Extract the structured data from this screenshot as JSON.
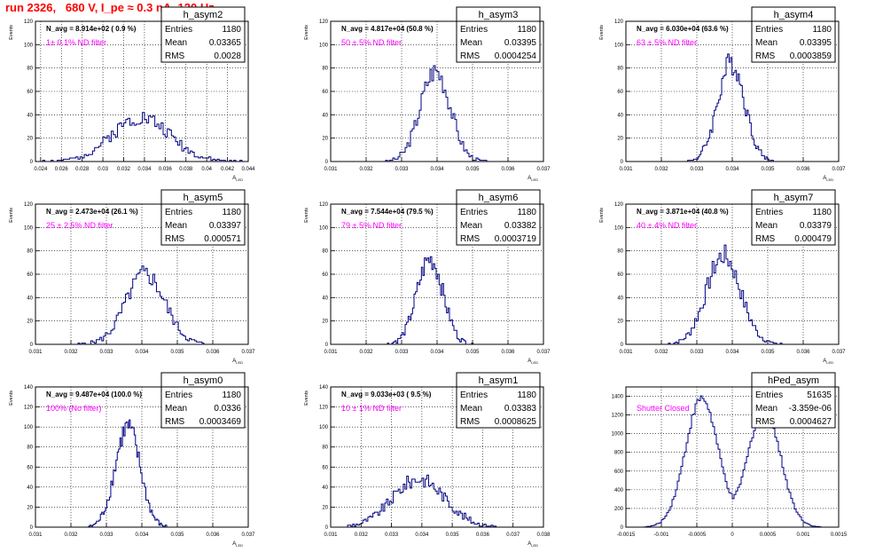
{
  "run_title": "run 2326,   680 V, I_pe ≈ 0.3 nA, 120 Hz",
  "colors": {
    "hist": "#000080",
    "annotation": "#ff00ff",
    "title": "#ff0000",
    "grid": "#000000"
  },
  "chart_data": [
    {
      "type": "bar",
      "name": "h_asym2",
      "ylabel": "Events",
      "xlabel": "A_{LED}",
      "xlim": [
        0.0235,
        0.044
      ],
      "ylim": [
        0,
        120
      ],
      "xticks": [
        0.024,
        0.026,
        0.028,
        0.03,
        0.032,
        0.034,
        0.036,
        0.038,
        0.04,
        0.042,
        0.044
      ],
      "xtick_labels": [
        "0.024",
        "0.026",
        "0.028",
        "0.03",
        "0.032",
        "0.034",
        "0.036",
        "0.038",
        "0.04",
        "0.042",
        "0.044"
      ],
      "yticks": [
        0,
        20,
        40,
        60,
        80,
        100,
        120
      ],
      "navg": "N_avg = 8.914e+02 ( 0.9 %)",
      "annotation": "1± 0.1% ND filter",
      "stats": {
        "title": "h_asym2",
        "rows": [
          [
            "Entries",
            "1180"
          ],
          [
            "Mean",
            "0.03365"
          ],
          [
            "RMS",
            "0.0028"
          ]
        ]
      },
      "hist": {
        "center": 0.03365,
        "width": 0.0028,
        "peak": 38,
        "lo": 0.0236,
        "hi": 0.0436,
        "nbins": 100,
        "seed": 2
      }
    },
    {
      "type": "bar",
      "name": "h_asym3",
      "ylabel": "Events",
      "xlabel": "A_{LED}",
      "xlim": [
        0.031,
        0.037
      ],
      "ylim": [
        0,
        120
      ],
      "xticks": [
        0.031,
        0.032,
        0.033,
        0.034,
        0.035,
        0.036,
        0.037
      ],
      "xtick_labels": [
        "0.031",
        "0.032",
        "0.033",
        "0.034",
        "0.035",
        "0.036",
        "0.037"
      ],
      "yticks": [
        0,
        20,
        40,
        60,
        80,
        100,
        120
      ],
      "navg": "N_avg = 4.817e+04 (50.8 %)",
      "annotation": "50 ± 5% ND filter",
      "stats": {
        "title": "h_asym3",
        "rows": [
          [
            "Entries",
            "1180"
          ],
          [
            "Mean",
            "0.03395"
          ],
          [
            "RMS",
            "0.0004254"
          ]
        ]
      },
      "hist": {
        "center": 0.03395,
        "width": 0.00042,
        "peak": 78,
        "lo": 0.0325,
        "hi": 0.0355,
        "nbins": 60,
        "seed": 3
      }
    },
    {
      "type": "bar",
      "name": "h_asym4",
      "ylabel": "Events",
      "xlabel": "A_{LED}",
      "xlim": [
        0.031,
        0.037
      ],
      "ylim": [
        0,
        120
      ],
      "xticks": [
        0.031,
        0.032,
        0.033,
        0.034,
        0.035,
        0.036,
        0.037
      ],
      "xtick_labels": [
        "0.031",
        "0.032",
        "0.033",
        "0.034",
        "0.035",
        "0.036",
        "0.037"
      ],
      "yticks": [
        0,
        20,
        40,
        60,
        80,
        100,
        120
      ],
      "navg": "N_avg = 6.030e+04 (63.6 %)",
      "annotation": "63 ± 5% ND filter",
      "stats": {
        "title": "h_asym4",
        "rows": [
          [
            "Entries",
            "1180"
          ],
          [
            "Mean",
            "0.03395"
          ],
          [
            "RMS",
            "0.0003859"
          ]
        ]
      },
      "hist": {
        "center": 0.03397,
        "width": 0.00038,
        "peak": 85,
        "lo": 0.0327,
        "hi": 0.0352,
        "nbins": 60,
        "seed": 4
      }
    },
    {
      "type": "bar",
      "name": "h_asym5",
      "ylabel": "Events",
      "xlabel": "A_{LED}",
      "xlim": [
        0.031,
        0.037
      ],
      "ylim": [
        0,
        120
      ],
      "xticks": [
        0.031,
        0.032,
        0.033,
        0.034,
        0.035,
        0.036,
        0.037
      ],
      "xtick_labels": [
        "0.031",
        "0.032",
        "0.033",
        "0.034",
        "0.035",
        "0.036",
        "0.037"
      ],
      "yticks": [
        0,
        20,
        40,
        60,
        80,
        100,
        120
      ],
      "navg": "N_avg = 2.473e+04 (26.1 %)",
      "annotation": "25 ± 2.5% ND filter",
      "stats": {
        "title": "h_asym5",
        "rows": [
          [
            "Entries",
            "1180"
          ],
          [
            "Mean",
            "0.03397"
          ],
          [
            "RMS",
            "0.000571"
          ]
        ]
      },
      "hist": {
        "center": 0.0341,
        "width": 0.00055,
        "peak": 60,
        "lo": 0.0322,
        "hi": 0.0358,
        "nbins": 70,
        "seed": 5
      }
    },
    {
      "type": "bar",
      "name": "h_asym6",
      "ylabel": "Events",
      "xlabel": "A_{LED}",
      "xlim": [
        0.031,
        0.037
      ],
      "ylim": [
        0,
        120
      ],
      "xticks": [
        0.031,
        0.032,
        0.033,
        0.034,
        0.035,
        0.036,
        0.037
      ],
      "xtick_labels": [
        "0.031",
        "0.032",
        "0.033",
        "0.034",
        "0.035",
        "0.036",
        "0.037"
      ],
      "yticks": [
        0,
        20,
        40,
        60,
        80,
        100,
        120
      ],
      "navg": "N_avg = 7.544e+04 (79.5 %)",
      "annotation": "79 ± 5% ND filter",
      "stats": {
        "title": "h_asym6",
        "rows": [
          [
            "Entries",
            "1180"
          ],
          [
            "Mean",
            "0.03382"
          ],
          [
            "RMS",
            "0.0003719"
          ]
        ]
      },
      "hist": {
        "center": 0.0338,
        "width": 0.00037,
        "peak": 73,
        "lo": 0.0326,
        "hi": 0.0351,
        "nbins": 60,
        "seed": 6
      }
    },
    {
      "type": "bar",
      "name": "h_asym7",
      "ylabel": "Events",
      "xlabel": "A_{LED}",
      "xlim": [
        0.031,
        0.037
      ],
      "ylim": [
        0,
        120
      ],
      "xticks": [
        0.031,
        0.032,
        0.033,
        0.034,
        0.035,
        0.036,
        0.037
      ],
      "xtick_labels": [
        "0.031",
        "0.032",
        "0.033",
        "0.034",
        "0.035",
        "0.036",
        "0.037"
      ],
      "yticks": [
        0,
        20,
        40,
        60,
        80,
        100,
        120
      ],
      "navg": "N_avg = 3.871e+04 (40.8 %)",
      "annotation": "40 ± 4% ND filter",
      "stats": {
        "title": "h_asym7",
        "rows": [
          [
            "Entries",
            "1180"
          ],
          [
            "Mean",
            "0.03379"
          ],
          [
            "RMS",
            "0.000479"
          ]
        ]
      },
      "hist": {
        "center": 0.03375,
        "width": 0.00048,
        "peak": 76,
        "lo": 0.0322,
        "hi": 0.0354,
        "nbins": 65,
        "seed": 7
      }
    },
    {
      "type": "bar",
      "name": "h_asym0",
      "ylabel": "Events",
      "xlabel": "A_{LED}",
      "xlim": [
        0.031,
        0.037
      ],
      "ylim": [
        0,
        140
      ],
      "xticks": [
        0.031,
        0.032,
        0.033,
        0.034,
        0.035,
        0.036,
        0.037
      ],
      "xtick_labels": [
        "0.031",
        "0.032",
        "0.033",
        "0.034",
        "0.035",
        "0.036",
        "0.037"
      ],
      "yticks": [
        0,
        20,
        40,
        60,
        80,
        100,
        120,
        140
      ],
      "navg": "N_avg = 9.487e+04 (100.0 %)",
      "annotation": "100% (No filter)",
      "stats": {
        "title": "h_asym0",
        "rows": [
          [
            "Entries",
            "1180"
          ],
          [
            "Mean",
            "0.0336"
          ],
          [
            "RMS",
            "0.0003469"
          ]
        ]
      },
      "hist": {
        "center": 0.0336,
        "width": 0.00035,
        "peak": 100,
        "lo": 0.0325,
        "hi": 0.0347,
        "nbins": 60,
        "seed": 8
      }
    },
    {
      "type": "bar",
      "name": "h_asym1",
      "ylabel": "Events",
      "xlabel": "A_{LED}",
      "xlim": [
        0.031,
        0.038
      ],
      "ylim": [
        0,
        140
      ],
      "xticks": [
        0.031,
        0.032,
        0.033,
        0.034,
        0.035,
        0.036,
        0.037,
        0.038
      ],
      "xtick_labels": [
        "0.031",
        "0.032",
        "0.033",
        "0.034",
        "0.035",
        "0.036",
        "0.037",
        "0.038"
      ],
      "yticks": [
        0,
        20,
        40,
        60,
        80,
        100,
        120,
        140
      ],
      "navg": "N_avg = 9.033e+03 ( 9.5 %)",
      "annotation": "10 ± 1% ND filter",
      "stats": {
        "title": "h_asym1",
        "rows": [
          [
            "Entries",
            "1180"
          ],
          [
            "Mean",
            "0.03383"
          ],
          [
            "RMS",
            "0.0008625"
          ]
        ]
      },
      "hist": {
        "center": 0.0339,
        "width": 0.00086,
        "peak": 48,
        "lo": 0.0315,
        "hi": 0.0365,
        "nbins": 90,
        "seed": 9
      }
    },
    {
      "type": "bar",
      "name": "hPed_asym",
      "ylabel": "",
      "xlabel": "",
      "xlim": [
        -0.0015,
        0.0015
      ],
      "ylim": [
        0,
        1500
      ],
      "xticks": [
        -0.0015,
        -0.001,
        -0.0005,
        0,
        0.0005,
        0.001,
        0.0015
      ],
      "xtick_labels": [
        "-0.0015",
        "-0.001",
        "-0.0005",
        "0",
        "0.0005",
        "0.001",
        "0.0015"
      ],
      "yticks": [
        0,
        200,
        400,
        600,
        800,
        1000,
        1200,
        1400
      ],
      "navg": "",
      "annotation": "Shutter Closed",
      "stats": {
        "title": "hPed_asym",
        "rows": [
          [
            "Entries",
            "51635"
          ],
          [
            "Mean",
            "-3.359e-06"
          ],
          [
            "RMS",
            "0.0004627"
          ]
        ]
      },
      "hist": {
        "bimodal": true,
        "center": -0.00043,
        "center2": 0.00045,
        "width": 0.00023,
        "peak": 1380,
        "peak2": 1260,
        "lo": -0.00125,
        "hi": 0.00125,
        "nbins": 100,
        "seed": 10
      }
    }
  ]
}
